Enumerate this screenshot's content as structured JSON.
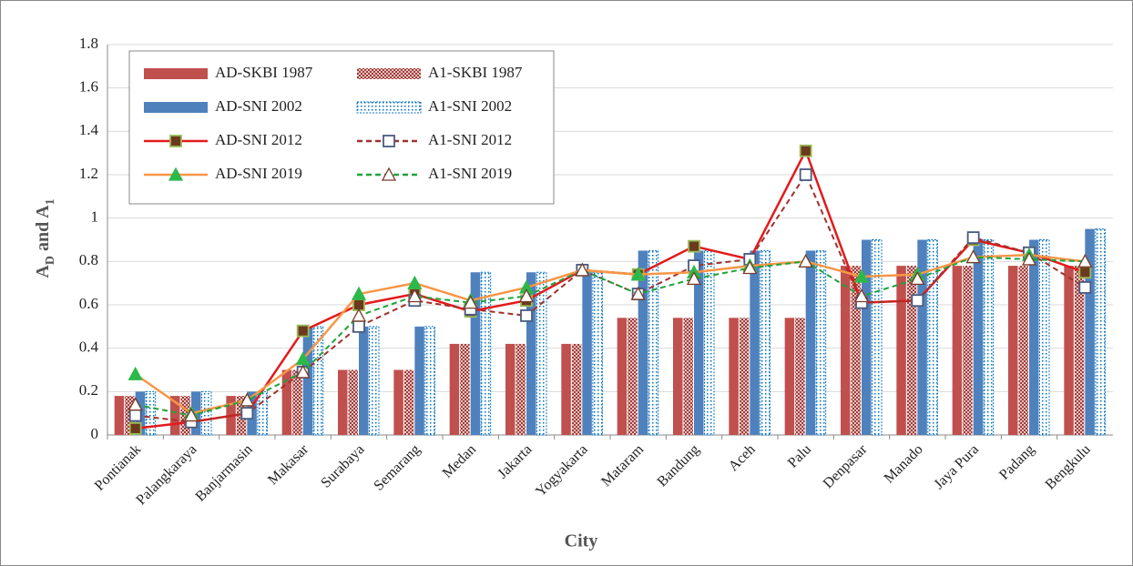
{
  "chart_data": {
    "type": "bar-line",
    "y_label": [
      "A",
      "D",
      " and A",
      "1"
    ],
    "x_label": "City",
    "categories": [
      "Pontianak",
      "Palangkaraya",
      "Banjarmasin",
      "Makasar",
      "Surabaya",
      "Semarang",
      "Medan",
      "Jakarta",
      "Yogyakarta",
      "Mataram",
      "Bandung",
      "Aceh",
      "Palu",
      "Denpasar",
      "Manado",
      "Jaya Pura",
      "Padang",
      "Bengkulu"
    ],
    "ylim": [
      0,
      1.8
    ],
    "yticks": [
      0,
      0.2,
      0.4,
      0.6,
      0.8,
      1,
      1.2,
      1.4,
      1.6,
      1.8
    ],
    "grid": true,
    "legend": "upper left",
    "series": [
      {
        "name": "AD-SKBI 1987",
        "kind": "bar",
        "color": "#c0504d",
        "pattern": "solid",
        "values": [
          0.18,
          0.18,
          0.18,
          0.3,
          0.3,
          0.3,
          0.42,
          0.42,
          0.42,
          0.54,
          0.54,
          0.54,
          0.54,
          0.78,
          0.78,
          0.78,
          0.78,
          0.78
        ]
      },
      {
        "name": "A1-SKBI 1987",
        "kind": "bar",
        "color": "#c0504d",
        "pattern": "checker",
        "values": [
          0.18,
          0.18,
          0.18,
          0.3,
          0.3,
          0.3,
          0.42,
          0.42,
          0.42,
          0.54,
          0.54,
          0.54,
          0.54,
          0.78,
          0.78,
          0.78,
          0.78,
          0.78
        ]
      },
      {
        "name": "AD-SNI 2002",
        "kind": "bar",
        "color": "#4f81bd",
        "pattern": "solid",
        "values": [
          0.2,
          0.2,
          0.2,
          0.5,
          0.5,
          0.5,
          0.75,
          0.75,
          0.75,
          0.85,
          0.85,
          0.85,
          0.85,
          0.9,
          0.9,
          0.9,
          0.9,
          0.95
        ]
      },
      {
        "name": "A1-SNI 2002",
        "kind": "bar",
        "color": "#0070c0",
        "pattern": "dotted",
        "values": [
          0.2,
          0.2,
          0.2,
          0.5,
          0.5,
          0.5,
          0.75,
          0.75,
          0.75,
          0.85,
          0.85,
          0.85,
          0.85,
          0.9,
          0.9,
          0.9,
          0.9,
          0.95
        ]
      },
      {
        "name": "AD-SNI 2012",
        "kind": "line",
        "color": "#e31a1c",
        "dash": "solid",
        "marker": "square",
        "marker_color": "#6b3a1e",
        "marker_edge": "#9bbb59",
        "values": [
          0.03,
          0.06,
          0.1,
          0.48,
          0.6,
          0.65,
          0.57,
          0.62,
          0.76,
          0.74,
          0.87,
          0.81,
          1.31,
          0.61,
          0.62,
          0.9,
          0.84,
          0.75
        ]
      },
      {
        "name": "A1-SNI 2012",
        "kind": "line",
        "color": "#a0322c",
        "dash": "dashed",
        "marker": "square",
        "marker_color": "#ffffff",
        "marker_edge": "#4a5a80",
        "values": [
          0.09,
          0.06,
          0.1,
          0.29,
          0.5,
          0.62,
          0.58,
          0.55,
          0.76,
          0.65,
          0.78,
          0.81,
          1.2,
          0.61,
          0.62,
          0.91,
          0.84,
          0.68
        ]
      },
      {
        "name": "AD-SNI 2019",
        "kind": "line",
        "color": "#f79646",
        "dash": "solid",
        "marker": "triangle",
        "marker_color": "#2db84a",
        "marker_edge": "#2db84a",
        "values": [
          0.28,
          0.1,
          0.16,
          0.35,
          0.65,
          0.7,
          0.62,
          0.68,
          0.76,
          0.74,
          0.75,
          0.78,
          0.8,
          0.73,
          0.74,
          0.82,
          0.83,
          0.8
        ]
      },
      {
        "name": "A1-SNI 2019",
        "kind": "line",
        "color": "#1fa33c",
        "dash": "dashed",
        "marker": "triangle",
        "marker_color": "#ffffff",
        "marker_edge": "#7a3a2a",
        "values": [
          0.14,
          0.09,
          0.16,
          0.29,
          0.55,
          0.64,
          0.61,
          0.64,
          0.76,
          0.65,
          0.72,
          0.77,
          0.8,
          0.64,
          0.72,
          0.82,
          0.81,
          0.8
        ]
      }
    ]
  }
}
